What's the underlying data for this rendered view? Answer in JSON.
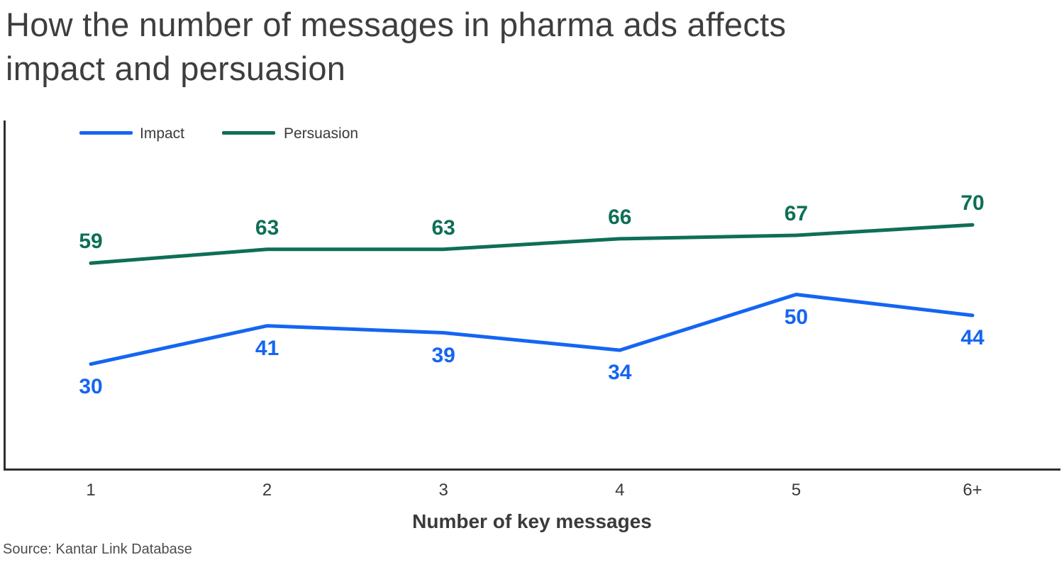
{
  "title": {
    "line1": "How the number of messages in pharma ads affects",
    "line2": "impact and persuasion"
  },
  "legend": {
    "items": [
      {
        "label": "Impact",
        "color": "#1565F2"
      },
      {
        "label": "Persuasion",
        "color": "#0E6F56"
      }
    ]
  },
  "chart_data": {
    "type": "line",
    "categories": [
      "1",
      "2",
      "3",
      "4",
      "5",
      "6+"
    ],
    "series": [
      {
        "name": "Impact",
        "color": "#1565F2",
        "values": [
          30,
          41,
          39,
          34,
          50,
          44
        ],
        "label_side": "below"
      },
      {
        "name": "Persuasion",
        "color": "#0E6F56",
        "values": [
          59,
          63,
          63,
          66,
          67,
          70
        ],
        "label_side": "above"
      }
    ],
    "title": "How the number of messages in pharma ads affects impact and persuasion",
    "xlabel": "Number of key messages",
    "ylabel": "",
    "ylim": [
      0,
      100
    ],
    "grid": false,
    "data_labels": true,
    "legend_position": "top-left"
  },
  "axis": {
    "xlabel": "Number of key messages",
    "spine_color": "#2F2F31"
  },
  "source": "Source: Kantar Link Database"
}
